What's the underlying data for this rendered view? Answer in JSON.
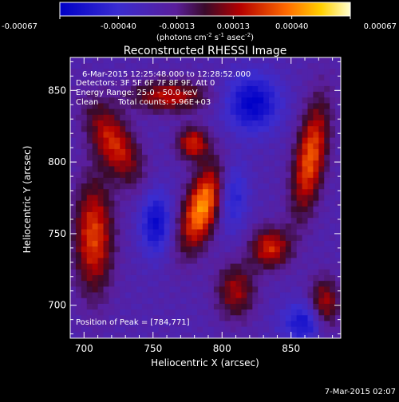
{
  "chart_data": {
    "type": "heatmap",
    "title": "Reconstructed RHESSI Image",
    "xlabel": "Heliocentric X (arcsec)",
    "ylabel": "Heliocentric Y (arcsec)",
    "xlim": [
      690,
      886
    ],
    "ylim": [
      677,
      873
    ],
    "x_ticks": [
      700,
      750,
      800,
      850
    ],
    "y_ticks": [
      700,
      750,
      800,
      850
    ],
    "colorbar": {
      "range": [
        -0.00067,
        0.00067
      ],
      "ticks": [
        "-0.00067",
        "-0.00040",
        "-0.00013",
        "0.00013",
        "0.00040",
        "0.00067"
      ],
      "unit_label": "(photons cm",
      "unit_exp1": "-2",
      "unit_mid": " s",
      "unit_exp2": "-1",
      "unit_mid2": " asec",
      "unit_exp3": "-2",
      "unit_end": ")"
    },
    "annotations": {
      "time_range": "6-Mar-2015 12:25:48.000 to 12:28:52.000",
      "detectors": "Detectors: 3F 5F 6F 7F 8F 9F, Att 0",
      "energy": "Energy Range: 25.0 - 50.0 keV",
      "method": "Clean",
      "counts": "Total counts: 5.96E+03",
      "peak": "Position of Peak = [784,771]"
    },
    "features": [
      {
        "x": 784,
        "y": 771,
        "amp": 0.00067,
        "sx": 9,
        "sy": 22,
        "angle": -20
      },
      {
        "x": 777,
        "y": 815,
        "amp": 0.00045,
        "sx": 8,
        "sy": 8,
        "angle": 0
      },
      {
        "x": 705,
        "y": 750,
        "amp": 0.0005,
        "sx": 10,
        "sy": 28,
        "angle": 0
      },
      {
        "x": 720,
        "y": 815,
        "amp": 0.00045,
        "sx": 10,
        "sy": 22,
        "angle": 30
      },
      {
        "x": 760,
        "y": 848,
        "amp": 0.0004,
        "sx": 20,
        "sy": 8,
        "angle": 0
      },
      {
        "x": 862,
        "y": 805,
        "amp": 0.00055,
        "sx": 8,
        "sy": 28,
        "angle": -10
      },
      {
        "x": 833,
        "y": 742,
        "amp": 0.00045,
        "sx": 10,
        "sy": 10,
        "angle": 0
      },
      {
        "x": 808,
        "y": 712,
        "amp": 0.00035,
        "sx": 10,
        "sy": 14,
        "angle": 0
      },
      {
        "x": 872,
        "y": 700,
        "amp": 0.00045,
        "sx": 8,
        "sy": 14,
        "angle": 0
      },
      {
        "x": 820,
        "y": 843,
        "amp": -0.00045,
        "sx": 14,
        "sy": 14,
        "angle": 0
      },
      {
        "x": 750,
        "y": 760,
        "amp": -0.0004,
        "sx": 8,
        "sy": 16,
        "angle": 0
      },
      {
        "x": 805,
        "y": 780,
        "amp": -0.0003,
        "sx": 8,
        "sy": 18,
        "angle": 0
      },
      {
        "x": 860,
        "y": 690,
        "amp": -0.0004,
        "sx": 12,
        "sy": 10,
        "angle": 0
      }
    ]
  },
  "footer": {
    "timestamp": "7-Mar-2015 02:07"
  }
}
